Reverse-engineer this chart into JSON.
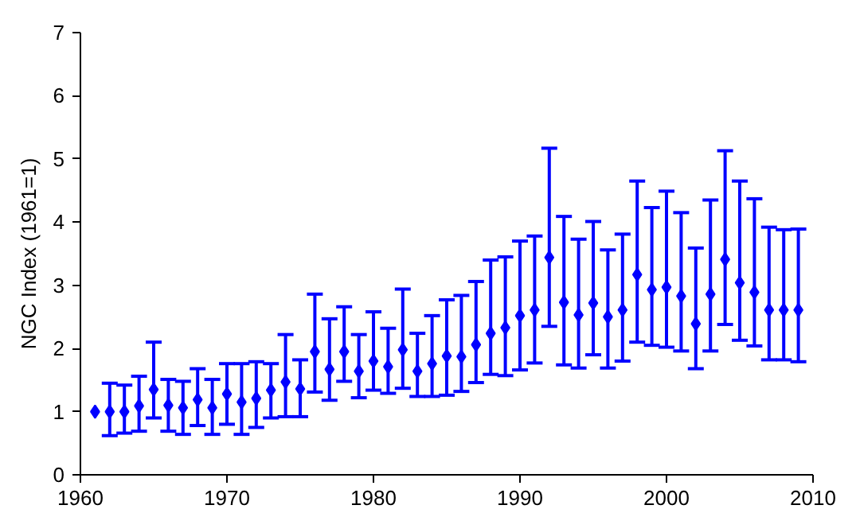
{
  "chart_data": {
    "type": "scatter",
    "ylabel": "NGC Index (1961=1)",
    "marker": "diamond",
    "grid": false,
    "xlim": [
      1960,
      2010
    ],
    "xticks": [
      1960,
      1970,
      1980,
      1990,
      2000,
      2010
    ],
    "ylim": [
      0,
      7
    ],
    "yticks": [
      0,
      1,
      2,
      3,
      4,
      5,
      6,
      7
    ],
    "x": [
      1961,
      1962,
      1963,
      1964,
      1965,
      1966,
      1967,
      1968,
      1969,
      1970,
      1971,
      1972,
      1973,
      1974,
      1975,
      1976,
      1977,
      1978,
      1979,
      1980,
      1981,
      1982,
      1983,
      1984,
      1985,
      1986,
      1987,
      1988,
      1989,
      1990,
      1991,
      1992,
      1993,
      1994,
      1995,
      1996,
      1997,
      1998,
      1999,
      2000,
      2001,
      2002,
      2003,
      2004,
      2005,
      2006,
      2007,
      2008,
      2009
    ],
    "series": [
      {
        "color": "#0000ff",
        "values": [
          1.0,
          1.0,
          1.0,
          1.09,
          1.35,
          1.1,
          1.06,
          1.19,
          1.06,
          1.28,
          1.15,
          1.21,
          1.34,
          1.47,
          1.36,
          1.95,
          1.67,
          1.95,
          1.64,
          1.8,
          1.71,
          1.98,
          1.64,
          1.76,
          1.88,
          1.87,
          2.06,
          2.24,
          2.33,
          2.52,
          2.61,
          3.44,
          2.73,
          2.53,
          2.72,
          2.5,
          2.61,
          3.17,
          2.93,
          2.97,
          2.83,
          2.39,
          2.86,
          3.41,
          3.04,
          2.89,
          2.61,
          2.61,
          2.61
        ],
        "errors": [
          null,
          [
            0.62,
            1.45
          ],
          [
            0.66,
            1.42
          ],
          [
            0.69,
            1.56
          ],
          [
            0.9,
            2.1
          ],
          [
            0.69,
            1.51
          ],
          [
            0.64,
            1.48
          ],
          [
            0.78,
            1.68
          ],
          [
            0.64,
            1.51
          ],
          [
            0.8,
            1.76
          ],
          [
            0.64,
            1.76
          ],
          [
            0.75,
            1.79
          ],
          [
            0.9,
            1.76
          ],
          [
            0.92,
            2.22
          ],
          [
            0.92,
            1.82
          ],
          [
            1.31,
            2.86
          ],
          [
            1.18,
            2.47
          ],
          [
            1.48,
            2.66
          ],
          [
            1.22,
            2.22
          ],
          [
            1.34,
            2.58
          ],
          [
            1.29,
            2.32
          ],
          [
            1.37,
            2.94
          ],
          [
            1.24,
            2.24
          ],
          [
            1.24,
            2.52
          ],
          [
            1.26,
            2.77
          ],
          [
            1.32,
            2.84
          ],
          [
            1.46,
            3.06
          ],
          [
            1.59,
            3.4
          ],
          [
            1.57,
            3.45
          ],
          [
            1.66,
            3.7
          ],
          [
            1.77,
            3.78
          ],
          [
            2.35,
            5.17
          ],
          [
            1.74,
            4.09
          ],
          [
            1.69,
            3.73
          ],
          [
            1.9,
            4.01
          ],
          [
            1.69,
            3.56
          ],
          [
            1.8,
            3.81
          ],
          [
            2.1,
            4.65
          ],
          [
            2.05,
            4.23
          ],
          [
            2.02,
            4.49
          ],
          [
            1.96,
            4.15
          ],
          [
            1.68,
            3.59
          ],
          [
            1.96,
            4.35
          ],
          [
            2.38,
            5.13
          ],
          [
            2.13,
            4.65
          ],
          [
            2.04,
            4.37
          ],
          [
            1.82,
            3.92
          ],
          [
            1.82,
            3.88
          ],
          [
            1.79,
            3.89
          ]
        ]
      }
    ]
  }
}
